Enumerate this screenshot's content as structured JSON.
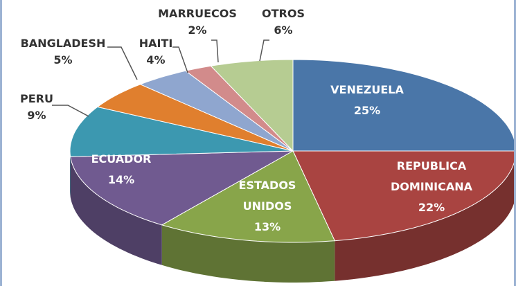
{
  "chart_data": {
    "type": "pie3d",
    "categories": [
      "VENEZUELA",
      "REPUBLICA DOMINICANA",
      "ESTADOS UNIDOS",
      "ECUADOR",
      "PERU",
      "BANGLADESH",
      "HAITI",
      "MARRUECOS",
      "OTROS"
    ],
    "values": [
      25,
      22,
      13,
      14,
      9,
      5,
      4,
      2,
      6
    ],
    "value_labels": [
      "25%",
      "22%",
      "13%",
      "14%",
      "9%",
      "5%",
      "4%",
      "2%",
      "6%"
    ],
    "colors": [
      "#4a76a8",
      "#a94441",
      "#88a54a",
      "#705a90",
      "#3c98b0",
      "#e07f2e",
      "#8fa6cf",
      "#d28b8b",
      "#b6cc92"
    ]
  }
}
